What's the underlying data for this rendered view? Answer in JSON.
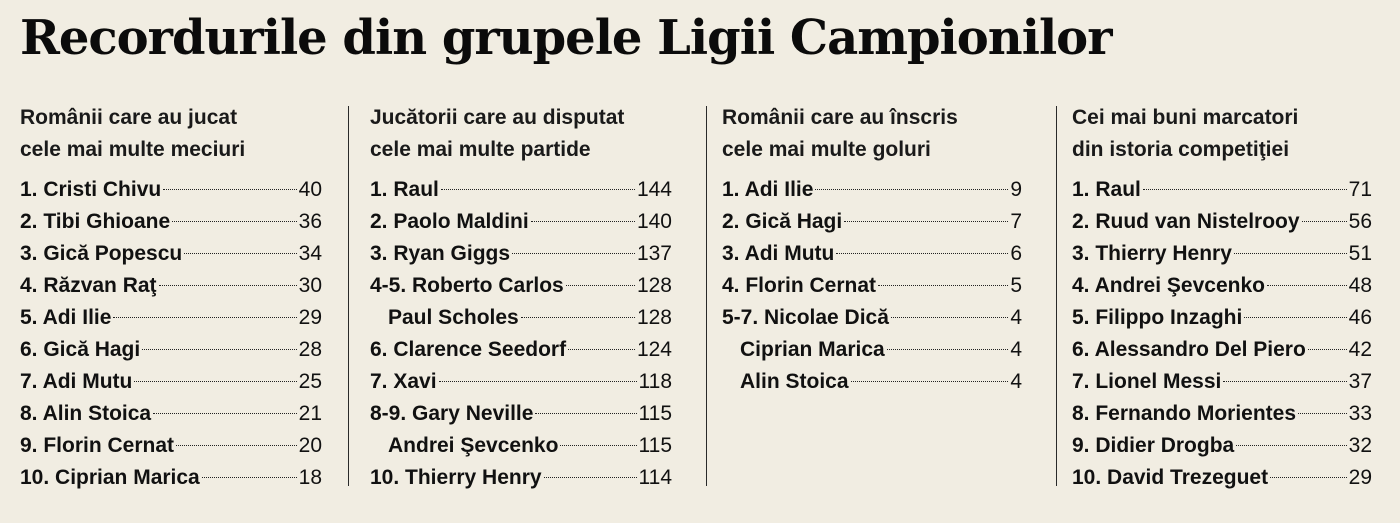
{
  "title": "Recordurile din grupele Ligii Campionilor",
  "columns": [
    {
      "heading": [
        "Românii care au jucat",
        "cele mai multe meciuri"
      ],
      "rows": [
        {
          "name": "1. Cristi Chivu",
          "value": "40"
        },
        {
          "name": "2. Tibi Ghioane",
          "value": "36"
        },
        {
          "name": "3. Gică Popescu",
          "value": "34"
        },
        {
          "name": "4. Răzvan Raţ",
          "value": "30"
        },
        {
          "name": "5. Adi Ilie",
          "value": "29"
        },
        {
          "name": "6. Gică Hagi",
          "value": "28"
        },
        {
          "name": "7. Adi Mutu",
          "value": "25"
        },
        {
          "name": "8. Alin Stoica",
          "value": "21"
        },
        {
          "name": "9. Florin Cernat",
          "value": "20"
        },
        {
          "name": "10. Ciprian Marica",
          "value": "18"
        }
      ]
    },
    {
      "heading": [
        "Jucătorii care au disputat",
        "cele mai multe partide"
      ],
      "rows": [
        {
          "name": "1. Raul",
          "value": "144"
        },
        {
          "name": "2. Paolo Maldini",
          "value": "140"
        },
        {
          "name": "3. Ryan Giggs",
          "value": "137"
        },
        {
          "name": "4-5. Roberto Carlos",
          "value": "128"
        },
        {
          "name": "Paul Scholes",
          "value": "128"
        },
        {
          "name": "6. Clarence Seedorf",
          "value": "124"
        },
        {
          "name": "7. Xavi",
          "value": "118"
        },
        {
          "name": "8-9. Gary Neville",
          "value": "115"
        },
        {
          "name": "Andrei Şevcenko",
          "value": "115"
        },
        {
          "name": "10. Thierry Henry",
          "value": "114"
        }
      ]
    },
    {
      "heading": [
        "Românii care au înscris",
        "cele mai multe goluri"
      ],
      "rows": [
        {
          "name": "1. Adi Ilie",
          "value": "9"
        },
        {
          "name": "2. Gică Hagi",
          "value": "7"
        },
        {
          "name": "3. Adi Mutu",
          "value": "6"
        },
        {
          "name": "4. Florin Cernat",
          "value": "5"
        },
        {
          "name": "5-7. Nicolae Dică",
          "value": "4"
        },
        {
          "name": "Ciprian Marica",
          "value": "4"
        },
        {
          "name": "Alin Stoica",
          "value": "4"
        }
      ]
    },
    {
      "heading": [
        "Cei mai buni marcatori",
        "din istoria competiţiei"
      ],
      "rows": [
        {
          "name": "1. Raul",
          "value": "71"
        },
        {
          "name": "2. Ruud van Nistelrooy",
          "value": "56"
        },
        {
          "name": "3. Thierry Henry",
          "value": "51"
        },
        {
          "name": "4. Andrei Şevcenko",
          "value": "48"
        },
        {
          "name": "5. Filippo Inzaghi",
          "value": "46"
        },
        {
          "name": "6. Alessandro Del Piero",
          "value": "42"
        },
        {
          "name": "7. Lionel Messi",
          "value": "37"
        },
        {
          "name": "8. Fernando Morientes",
          "value": "33"
        },
        {
          "name": "9. Didier Drogba",
          "value": "32"
        },
        {
          "name": "10. David Trezeguet",
          "value": "29"
        }
      ]
    }
  ]
}
